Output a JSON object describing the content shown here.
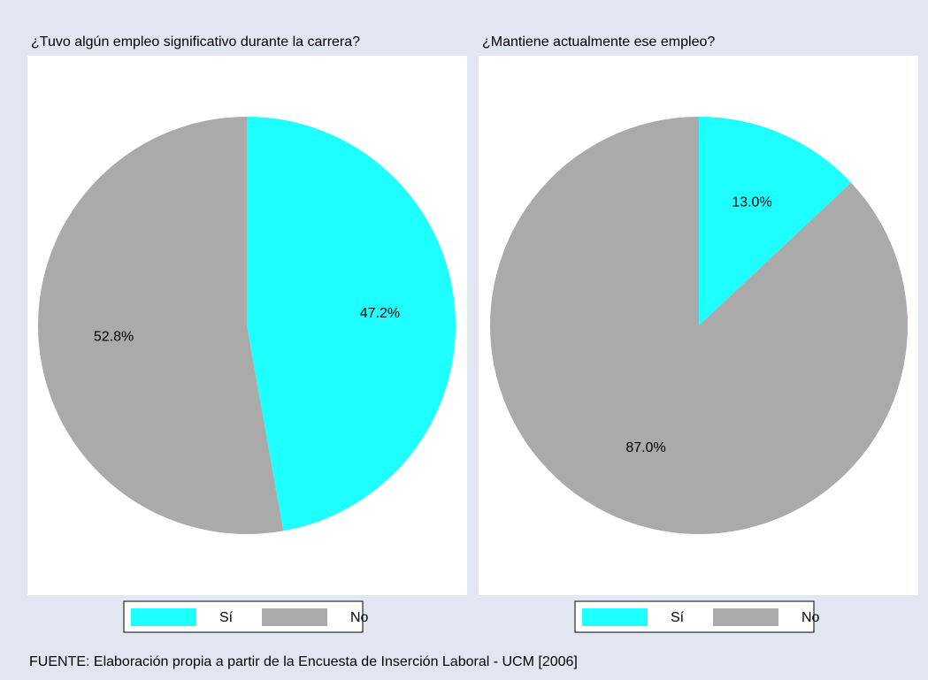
{
  "chart_data": [
    {
      "type": "pie",
      "title": "¿Tuvo algún empleo significativo durante la carrera?",
      "categories": [
        "Sí",
        "No"
      ],
      "values": [
        47.2,
        52.8
      ],
      "value_labels": [
        "47.2%",
        "52.8%"
      ],
      "colors": [
        "#1effff",
        "#aaaaaa"
      ]
    },
    {
      "type": "pie",
      "title": "¿Mantiene actualmente ese empleo?",
      "categories": [
        "Sí",
        "No"
      ],
      "values": [
        13.0,
        87.0
      ],
      "value_labels": [
        "13.0%",
        "87.0%"
      ],
      "colors": [
        "#1effff",
        "#aaaaaa"
      ]
    }
  ],
  "source": "FUENTE: Elaboración propia a partir de la Encuesta de Inserción Laboral - UCM [2006]"
}
